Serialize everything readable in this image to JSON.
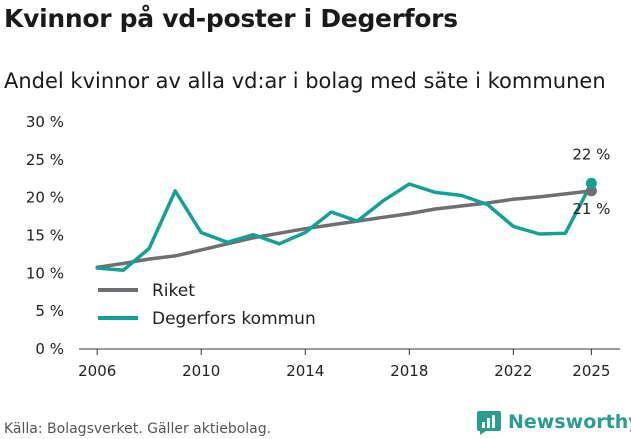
{
  "header": {
    "title": "Kvinnor på vd-poster i Degerfors",
    "subtitle": "Andel kvinnor av alla vd:ar i bolag med säte i kommunen"
  },
  "footer": {
    "source": "Källa: Bolagsverket. Gäller aktiebolag.",
    "brand": "Newsworthy"
  },
  "chart_data": {
    "type": "line",
    "title": "Kvinnor på vd-poster i Degerfors",
    "subtitle": "Andel kvinnor av alla vd:ar i bolag med säte i kommunen",
    "xlabel": "",
    "ylabel": "",
    "xlim": [
      2005.3,
      2026.1
    ],
    "ylim": [
      0,
      30
    ],
    "x_ticks": [
      2006,
      2010,
      2014,
      2018,
      2022,
      2025
    ],
    "y_ticks": [
      0,
      5,
      10,
      15,
      20,
      25,
      30
    ],
    "y_tick_labels": [
      "0 %",
      "5 %",
      "10 %",
      "15 %",
      "20 %",
      "25 %",
      "30 %"
    ],
    "grid": false,
    "legend_position": "lower-left",
    "series": [
      {
        "name": "Riket",
        "color": "#6e6e73",
        "x": [
          2006,
          2007,
          2008,
          2009,
          2010,
          2011,
          2012,
          2013,
          2014,
          2015,
          2016,
          2017,
          2018,
          2019,
          2020,
          2021,
          2022,
          2023,
          2024,
          2025
        ],
        "values": [
          10.8,
          11.3,
          11.9,
          12.3,
          13.1,
          13.9,
          14.7,
          15.3,
          15.9,
          16.4,
          16.9,
          17.4,
          17.9,
          18.5,
          18.9,
          19.3,
          19.8,
          20.1,
          20.5,
          20.9
        ],
        "end_label": "21 %"
      },
      {
        "name": "Degerfors kommun",
        "color": "#12a196",
        "x": [
          2006,
          2007,
          2008,
          2009,
          2010,
          2011,
          2012,
          2013,
          2014,
          2015,
          2016,
          2017,
          2018,
          2019,
          2020,
          2021,
          2022,
          2023,
          2024,
          2025
        ],
        "values": [
          10.7,
          10.4,
          13.3,
          20.9,
          15.4,
          14.1,
          15.1,
          13.9,
          15.4,
          18.1,
          16.9,
          19.6,
          21.8,
          20.7,
          20.3,
          19.1,
          16.2,
          15.2,
          15.3,
          21.9
        ],
        "end_label": "22 %"
      }
    ]
  }
}
